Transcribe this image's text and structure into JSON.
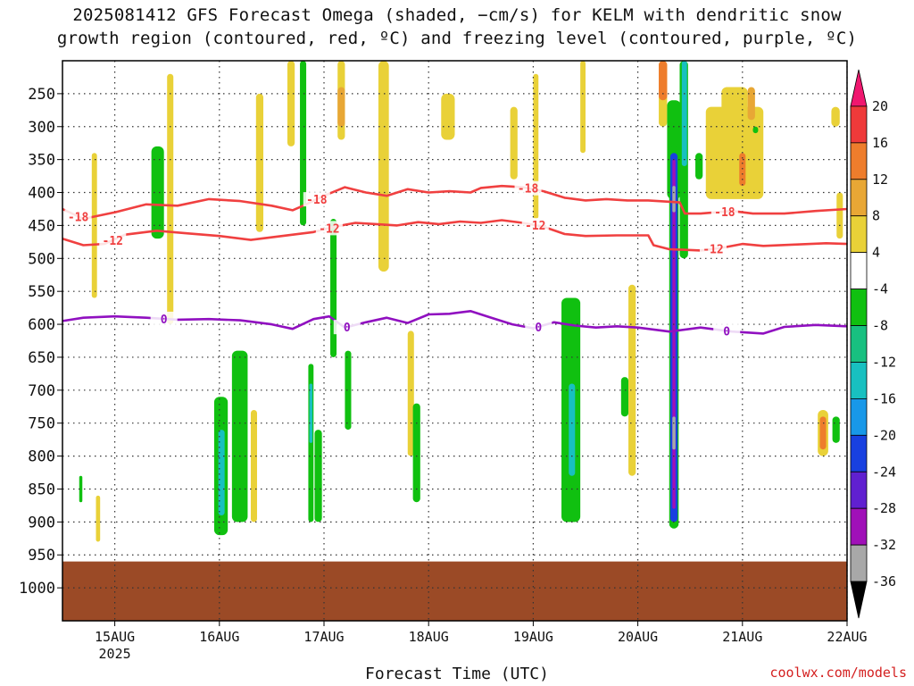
{
  "title": {
    "line1": "2025081412 GFS Forecast Omega (shaded, −cm/s) for KELM with dendritic snow",
    "line2": "growth region (contoured, red, ºC) and freezing level (contoured, purple, ºC)"
  },
  "credit": "coolwx.com/models",
  "chart_data": {
    "type": "heatmap",
    "xlabel": "Forecast Time (UTC)",
    "x_range": [
      14.5,
      22.0
    ],
    "x_ticks": [
      {
        "value": 15,
        "label": "15AUG",
        "sublabel": "2025"
      },
      {
        "value": 16,
        "label": "16AUG",
        "sublabel": ""
      },
      {
        "value": 17,
        "label": "17AUG",
        "sublabel": ""
      },
      {
        "value": 18,
        "label": "18AUG",
        "sublabel": ""
      },
      {
        "value": 19,
        "label": "19AUG",
        "sublabel": ""
      },
      {
        "value": 20,
        "label": "20AUG",
        "sublabel": ""
      },
      {
        "value": 21,
        "label": "21AUG",
        "sublabel": ""
      },
      {
        "value": 22,
        "label": "22AUG",
        "sublabel": ""
      }
    ],
    "y_axis": "pressure (hPa), decreasing upward",
    "y_range": [
      1050,
      200
    ],
    "y_ticks": [
      250,
      300,
      350,
      400,
      450,
      500,
      550,
      600,
      650,
      700,
      750,
      800,
      850,
      900,
      950,
      1000
    ],
    "grid": true,
    "ground_below_hPa": 960,
    "ground_color": "#9b4a26",
    "colorbar": {
      "position": "right",
      "levels": [
        20,
        16,
        12,
        8,
        4,
        -4,
        -8,
        -12,
        -16,
        -20,
        -24,
        -28,
        -32,
        -36
      ],
      "colors": [
        "#f0176f",
        "#ef3a3a",
        "#ee7d2c",
        "#e8a735",
        "#e9d138",
        "#ffffff",
        "#10c010",
        "#18c080",
        "#18c0c0",
        "#1898e8",
        "#1840e0",
        "#6020d0",
        "#a010b8",
        "#a8a8a8",
        "#000000"
      ]
    },
    "omega_cells": [
      {
        "x0": 14.78,
        "x1": 14.83,
        "p_top": 340,
        "p_bot": 560,
        "value": 5
      },
      {
        "x0": 14.82,
        "x1": 14.86,
        "p_top": 860,
        "p_bot": 930,
        "value": 5
      },
      {
        "x0": 14.66,
        "x1": 14.69,
        "p_top": 830,
        "p_bot": 870,
        "value": -6
      },
      {
        "x0": 15.35,
        "x1": 15.47,
        "p_top": 330,
        "p_bot": 470,
        "value": -6
      },
      {
        "x0": 15.5,
        "x1": 15.56,
        "p_top": 220,
        "p_bot": 600,
        "value": 5
      },
      {
        "x0": 15.95,
        "x1": 16.08,
        "p_top": 710,
        "p_bot": 920,
        "value": -8
      },
      {
        "x0": 15.99,
        "x1": 16.05,
        "p_top": 760,
        "p_bot": 890,
        "value": -14
      },
      {
        "x0": 16.12,
        "x1": 16.27,
        "p_top": 640,
        "p_bot": 900,
        "value": -6
      },
      {
        "x0": 16.3,
        "x1": 16.36,
        "p_top": 730,
        "p_bot": 900,
        "value": 5
      },
      {
        "x0": 16.35,
        "x1": 16.42,
        "p_top": 250,
        "p_bot": 460,
        "value": 5
      },
      {
        "x0": 16.65,
        "x1": 16.72,
        "p_top": 200,
        "p_bot": 330,
        "value": 5
      },
      {
        "x0": 16.77,
        "x1": 16.83,
        "p_top": 200,
        "p_bot": 450,
        "value": -6
      },
      {
        "x0": 16.85,
        "x1": 16.9,
        "p_top": 660,
        "p_bot": 900,
        "value": -6
      },
      {
        "x0": 16.86,
        "x1": 16.89,
        "p_top": 690,
        "p_bot": 780,
        "value": -16
      },
      {
        "x0": 16.91,
        "x1": 16.98,
        "p_top": 760,
        "p_bot": 900,
        "value": -6
      },
      {
        "x0": 17.06,
        "x1": 17.12,
        "p_top": 440,
        "p_bot": 650,
        "value": -6
      },
      {
        "x0": 17.13,
        "x1": 17.2,
        "p_top": 200,
        "p_bot": 320,
        "value": 5
      },
      {
        "x0": 17.13,
        "x1": 17.2,
        "p_top": 240,
        "p_bot": 300,
        "value": 9
      },
      {
        "x0": 17.2,
        "x1": 17.26,
        "p_top": 640,
        "p_bot": 760,
        "value": -6
      },
      {
        "x0": 17.52,
        "x1": 17.62,
        "p_top": 200,
        "p_bot": 520,
        "value": 5
      },
      {
        "x0": 17.8,
        "x1": 17.86,
        "p_top": 610,
        "p_bot": 800,
        "value": 5
      },
      {
        "x0": 17.85,
        "x1": 17.92,
        "p_top": 720,
        "p_bot": 870,
        "value": -6
      },
      {
        "x0": 18.12,
        "x1": 18.25,
        "p_top": 250,
        "p_bot": 320,
        "value": 5
      },
      {
        "x0": 18.78,
        "x1": 18.85,
        "p_top": 270,
        "p_bot": 380,
        "value": 5
      },
      {
        "x0": 19.0,
        "x1": 19.05,
        "p_top": 220,
        "p_bot": 440,
        "value": 5
      },
      {
        "x0": 19.27,
        "x1": 19.45,
        "p_top": 560,
        "p_bot": 900,
        "value": -6
      },
      {
        "x0": 19.34,
        "x1": 19.4,
        "p_top": 690,
        "p_bot": 830,
        "value": -14
      },
      {
        "x0": 19.45,
        "x1": 19.5,
        "p_top": 190,
        "p_bot": 340,
        "value": 5
      },
      {
        "x0": 19.84,
        "x1": 19.91,
        "p_top": 680,
        "p_bot": 740,
        "value": -6
      },
      {
        "x0": 19.91,
        "x1": 19.98,
        "p_top": 540,
        "p_bot": 830,
        "value": 5
      },
      {
        "x0": 20.2,
        "x1": 20.28,
        "p_top": 190,
        "p_bot": 300,
        "value": 5
      },
      {
        "x0": 20.2,
        "x1": 20.28,
        "p_top": 200,
        "p_bot": 260,
        "value": 13
      },
      {
        "x0": 20.4,
        "x1": 20.48,
        "p_top": 180,
        "p_bot": 500,
        "value": -6
      },
      {
        "x0": 20.42,
        "x1": 20.47,
        "p_top": 180,
        "p_bot": 360,
        "value": -14
      },
      {
        "x0": 20.28,
        "x1": 20.41,
        "p_top": 260,
        "p_bot": 410,
        "value": -8
      },
      {
        "x0": 20.3,
        "x1": 20.39,
        "p_top": 330,
        "p_bot": 910,
        "value": -6
      },
      {
        "x0": 20.31,
        "x1": 20.38,
        "p_top": 340,
        "p_bot": 900,
        "value": -22
      },
      {
        "x0": 20.33,
        "x1": 20.36,
        "p_top": 350,
        "p_bot": 880,
        "value": -30
      },
      {
        "x0": 20.33,
        "x1": 20.36,
        "p_top": 390,
        "p_bot": 430,
        "value": -34
      },
      {
        "x0": 20.33,
        "x1": 20.36,
        "p_top": 740,
        "p_bot": 790,
        "value": -34
      },
      {
        "x0": 20.55,
        "x1": 20.62,
        "p_top": 340,
        "p_bot": 380,
        "value": -6
      },
      {
        "x0": 20.65,
        "x1": 21.2,
        "p_top": 270,
        "p_bot": 410,
        "value": 5
      },
      {
        "x0": 20.8,
        "x1": 21.05,
        "p_top": 240,
        "p_bot": 300,
        "value": 5
      },
      {
        "x0": 20.97,
        "x1": 21.03,
        "p_top": 340,
        "p_bot": 390,
        "value": 13
      },
      {
        "x0": 21.05,
        "x1": 21.12,
        "p_top": 240,
        "p_bot": 290,
        "value": 9
      },
      {
        "x0": 21.1,
        "x1": 21.15,
        "p_top": 300,
        "p_bot": 310,
        "value": -6
      },
      {
        "x0": 21.72,
        "x1": 21.82,
        "p_top": 730,
        "p_bot": 800,
        "value": 5
      },
      {
        "x0": 21.74,
        "x1": 21.8,
        "p_top": 740,
        "p_bot": 790,
        "value": 13
      },
      {
        "x0": 21.86,
        "x1": 21.93,
        "p_top": 740,
        "p_bot": 780,
        "value": -6
      },
      {
        "x0": 21.85,
        "x1": 21.93,
        "p_top": 270,
        "p_bot": 300,
        "value": 5
      },
      {
        "x0": 21.9,
        "x1": 21.96,
        "p_top": 400,
        "p_bot": 470,
        "value": 5
      }
    ],
    "isotherms": [
      {
        "name": "-18",
        "color": "#f04040",
        "line_labels": [
          {
            "x": 14.65,
            "text": "-18"
          },
          {
            "x": 16.93,
            "text": "-18"
          },
          {
            "x": 18.95,
            "text": "-18"
          },
          {
            "x": 20.83,
            "text": "-18"
          }
        ],
        "points": [
          [
            14.5,
            425
          ],
          [
            14.7,
            440
          ],
          [
            15.0,
            430
          ],
          [
            15.3,
            418
          ],
          [
            15.6,
            420
          ],
          [
            15.9,
            410
          ],
          [
            16.2,
            413
          ],
          [
            16.5,
            420
          ],
          [
            16.7,
            427
          ],
          [
            16.8,
            420
          ],
          [
            17.0,
            405
          ],
          [
            17.2,
            392
          ],
          [
            17.4,
            400
          ],
          [
            17.6,
            405
          ],
          [
            17.8,
            395
          ],
          [
            18.0,
            400
          ],
          [
            18.2,
            398
          ],
          [
            18.4,
            400
          ],
          [
            18.5,
            393
          ],
          [
            18.7,
            390
          ],
          [
            18.9,
            392
          ],
          [
            19.1,
            398
          ],
          [
            19.3,
            408
          ],
          [
            19.5,
            412
          ],
          [
            19.7,
            410
          ],
          [
            19.9,
            412
          ],
          [
            20.1,
            412
          ],
          [
            20.4,
            415
          ],
          [
            20.45,
            432
          ],
          [
            20.6,
            432
          ],
          [
            20.9,
            428
          ],
          [
            21.1,
            432
          ],
          [
            21.4,
            432
          ],
          [
            21.7,
            428
          ],
          [
            22.0,
            425
          ]
        ]
      },
      {
        "name": "-12",
        "color": "#f04040",
        "line_labels": [
          {
            "x": 14.98,
            "text": "-12"
          },
          {
            "x": 17.05,
            "text": "-12"
          },
          {
            "x": 19.02,
            "text": "-12"
          },
          {
            "x": 20.72,
            "text": "-12"
          }
        ],
        "points": [
          [
            14.5,
            470
          ],
          [
            14.7,
            480
          ],
          [
            14.9,
            478
          ],
          [
            15.1,
            464
          ],
          [
            15.4,
            458
          ],
          [
            15.7,
            462
          ],
          [
            16.0,
            466
          ],
          [
            16.3,
            472
          ],
          [
            16.6,
            466
          ],
          [
            16.9,
            460
          ],
          [
            17.1,
            452
          ],
          [
            17.3,
            446
          ],
          [
            17.5,
            448
          ],
          [
            17.7,
            450
          ],
          [
            17.9,
            445
          ],
          [
            18.1,
            448
          ],
          [
            18.3,
            444
          ],
          [
            18.5,
            446
          ],
          [
            18.7,
            442
          ],
          [
            18.9,
            446
          ],
          [
            19.1,
            452
          ],
          [
            19.3,
            463
          ],
          [
            19.5,
            466
          ],
          [
            19.8,
            465
          ],
          [
            20.1,
            465
          ],
          [
            20.15,
            480
          ],
          [
            20.3,
            486
          ],
          [
            20.6,
            488
          ],
          [
            20.8,
            484
          ],
          [
            21.0,
            478
          ],
          [
            21.2,
            481
          ],
          [
            21.5,
            479
          ],
          [
            21.8,
            477
          ],
          [
            22.0,
            478
          ]
        ]
      },
      {
        "name": "0",
        "color": "#9010c0",
        "line_labels": [
          {
            "x": 15.47,
            "text": "0"
          },
          {
            "x": 17.22,
            "text": "0"
          },
          {
            "x": 19.05,
            "text": "0"
          },
          {
            "x": 20.85,
            "text": "0"
          }
        ],
        "points": [
          [
            14.5,
            595
          ],
          [
            14.7,
            590
          ],
          [
            15.0,
            588
          ],
          [
            15.3,
            590
          ],
          [
            15.6,
            593
          ],
          [
            15.9,
            592
          ],
          [
            16.2,
            594
          ],
          [
            16.5,
            600
          ],
          [
            16.7,
            607
          ],
          [
            16.9,
            592
          ],
          [
            17.05,
            588
          ],
          [
            17.2,
            605
          ],
          [
            17.4,
            597
          ],
          [
            17.6,
            590
          ],
          [
            17.8,
            598
          ],
          [
            18.0,
            585
          ],
          [
            18.2,
            584
          ],
          [
            18.4,
            580
          ],
          [
            18.6,
            590
          ],
          [
            18.8,
            600
          ],
          [
            19.0,
            606
          ],
          [
            19.2,
            597
          ],
          [
            19.4,
            602
          ],
          [
            19.6,
            605
          ],
          [
            19.8,
            603
          ],
          [
            20.0,
            605
          ],
          [
            20.3,
            611
          ],
          [
            20.6,
            605
          ],
          [
            20.9,
            611
          ],
          [
            21.2,
            614
          ],
          [
            21.4,
            604
          ],
          [
            21.7,
            601
          ],
          [
            22.0,
            603
          ]
        ]
      }
    ]
  }
}
